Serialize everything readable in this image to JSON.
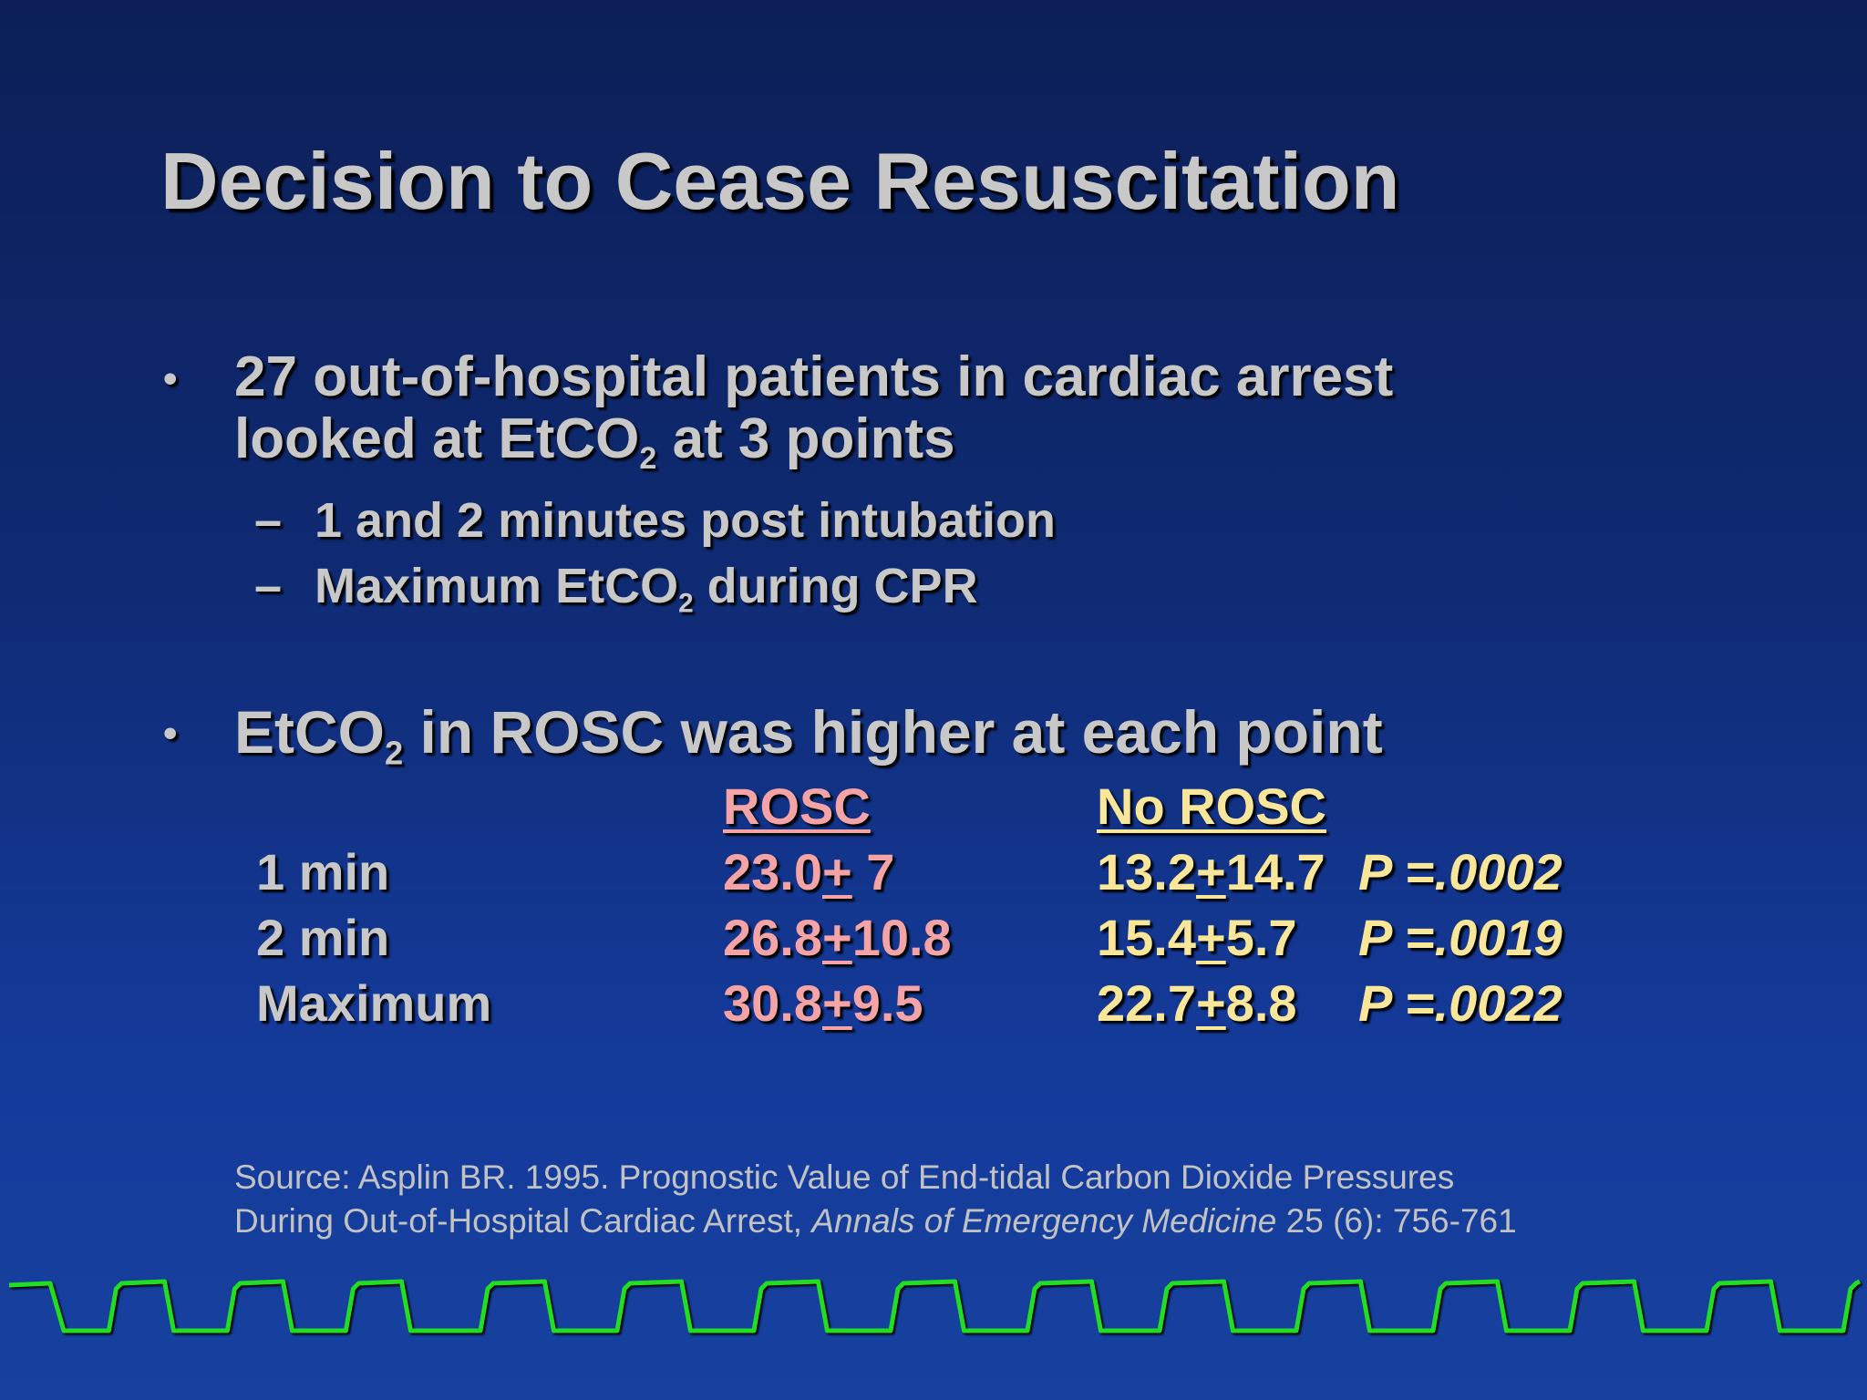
{
  "slide": {
    "title": "Decision to Cease Resuscitation",
    "bullet1": {
      "line1": "27 out-of-hospital patients in cardiac arrest",
      "line2_pre": "looked at EtCO",
      "line2_sub": "2",
      "line2_post": " at 3 points",
      "subitems": [
        {
          "pre": "1 and 2 minutes post intubation",
          "sub": "",
          "post": ""
        },
        {
          "pre": "Maximum EtCO",
          "sub": "2",
          "post": " during CPR"
        }
      ]
    },
    "bullet2": {
      "pre": "EtCO",
      "sub": "2",
      "post": " in ROSC was higher at each point"
    },
    "table": {
      "headers": {
        "rosc": "ROSC",
        "no_rosc": "No ROSC"
      },
      "rows": [
        {
          "label": "1 min",
          "rosc_mean": "23.0",
          "rosc_pm": "+",
          "rosc_sd": " 7",
          "no_mean": "13.2",
          "no_pm": "+",
          "no_sd": "14.7",
          "p": "P =.0002"
        },
        {
          "label": "2 min",
          "rosc_mean": "26.8",
          "rosc_pm": "+",
          "rosc_sd": "10.8",
          "no_mean": "15.4",
          "no_pm": "+",
          "no_sd": "5.7",
          "p": "P =.0019"
        },
        {
          "label": "Maximum",
          "rosc_mean": "30.8",
          "rosc_pm": "+",
          "rosc_sd": "9.5",
          "no_mean": "22.7",
          "no_pm": "+",
          "no_sd": "8.8",
          "p": "P =.0022"
        }
      ]
    },
    "source": {
      "line1": "Source: Asplin BR. 1995. Prognostic Value of End-tidal Carbon Dioxide Pressures",
      "line2_pre": "During Out-of-Hospital Cardiac Arrest, ",
      "line2_journal": "Annals of Emergency Medicine",
      "line2_post": " 25 (6): 756-761"
    },
    "colors": {
      "text": "#c8c8c8",
      "rosc": "#f4a3a6",
      "no_rosc": "#f8e69a",
      "capnogram": "#22dd22"
    }
  }
}
